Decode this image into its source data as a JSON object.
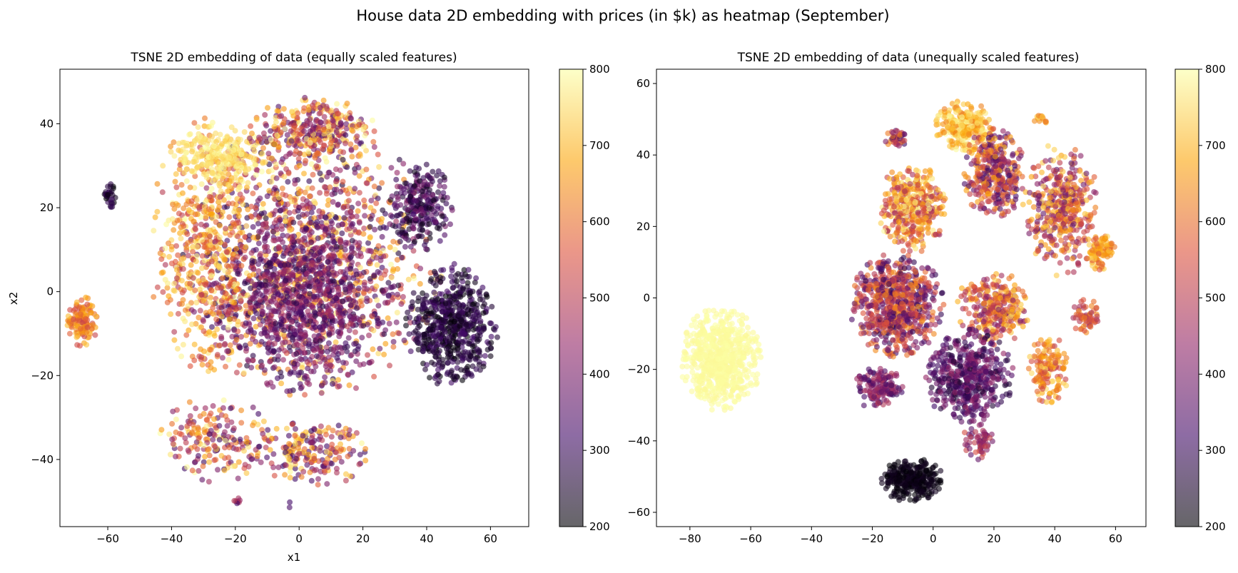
{
  "figure_title": "House data 2D embedding with prices (in $k) as heatmap (September)",
  "colormap": "inferno",
  "colormap_stops": [
    "#000004",
    "#420a68",
    "#932667",
    "#dd513a",
    "#fca50a",
    "#fcffa4"
  ],
  "chart_data": [
    {
      "type": "scatter",
      "title": "TSNE 2D embedding of data (equally scaled features)",
      "xlabel": "x1",
      "ylabel": "x2",
      "xlim": [
        -75,
        72
      ],
      "ylim": [
        -56,
        53
      ],
      "xticks": [
        -60,
        -40,
        -20,
        0,
        20,
        40,
        60
      ],
      "xtick_labels": [
        "−60",
        "−40",
        "−20",
        "0",
        "20",
        "40",
        "60"
      ],
      "yticks": [
        -40,
        -20,
        0,
        20,
        40
      ],
      "ytick_labels": [
        "−40",
        "−20",
        "0",
        "20",
        "40"
      ],
      "grid": false,
      "colorbar": {
        "label": "",
        "min": 200,
        "max": 800,
        "ticks": [
          200,
          300,
          400,
          500,
          600,
          700,
          800
        ],
        "tick_labels": [
          "200",
          "300",
          "400",
          "500",
          "600",
          "700",
          "800"
        ]
      },
      "clusters": [
        {
          "cx": 3,
          "cy": 8,
          "rx": 40,
          "ry": 32,
          "n": 1200,
          "cmin": 250,
          "cmax": 800
        },
        {
          "cx": 0,
          "cy": -2,
          "rx": 28,
          "ry": 22,
          "n": 900,
          "cmin": 270,
          "cmax": 480
        },
        {
          "cx": -30,
          "cy": 10,
          "rx": 16,
          "ry": 30,
          "n": 500,
          "cmin": 480,
          "cmax": 800
        },
        {
          "cx": -25,
          "cy": 32,
          "rx": 14,
          "ry": 8,
          "n": 250,
          "cmin": 720,
          "cmax": 800
        },
        {
          "cx": 5,
          "cy": 38,
          "rx": 20,
          "ry": 8,
          "n": 350,
          "cmin": 300,
          "cmax": 800
        },
        {
          "cx": 48,
          "cy": -8,
          "rx": 14,
          "ry": 14,
          "n": 600,
          "cmin": 200,
          "cmax": 330
        },
        {
          "cx": 38,
          "cy": 20,
          "rx": 10,
          "ry": 10,
          "n": 250,
          "cmin": 220,
          "cmax": 400
        },
        {
          "cx": -68,
          "cy": -7,
          "rx": 5,
          "ry": 6,
          "n": 120,
          "cmin": 520,
          "cmax": 720
        },
        {
          "cx": -59,
          "cy": 23,
          "rx": 2,
          "ry": 3,
          "n": 30,
          "cmin": 200,
          "cmax": 300
        },
        {
          "cx": -25,
          "cy": -35,
          "rx": 18,
          "ry": 10,
          "n": 200,
          "cmin": 300,
          "cmax": 800
        },
        {
          "cx": 5,
          "cy": -38,
          "rx": 18,
          "ry": 8,
          "n": 200,
          "cmin": 300,
          "cmax": 800
        },
        {
          "cx": -19,
          "cy": -50,
          "rx": 2,
          "ry": 1.5,
          "n": 8,
          "cmin": 300,
          "cmax": 500
        },
        {
          "cx": -3,
          "cy": -51,
          "rx": 1,
          "ry": 1,
          "n": 2,
          "cmin": 300,
          "cmax": 350
        }
      ]
    },
    {
      "type": "scatter",
      "title": "TSNE 2D embedding of data (unequally scaled features)",
      "xlabel": "",
      "ylabel": "",
      "xlim": [
        -91,
        70
      ],
      "ylim": [
        -64,
        64
      ],
      "xticks": [
        -80,
        -60,
        -40,
        -20,
        0,
        20,
        40,
        60
      ],
      "xtick_labels": [
        "−80",
        "−60",
        "−40",
        "−20",
        "0",
        "20",
        "40",
        "60"
      ],
      "yticks": [
        -60,
        -40,
        -20,
        0,
        20,
        40,
        60
      ],
      "ytick_labels": [
        "−60",
        "−40",
        "−20",
        "0",
        "20",
        "40",
        "60"
      ],
      "grid": false,
      "colorbar": {
        "label": "",
        "min": 200,
        "max": 800,
        "ticks": [
          200,
          300,
          400,
          500,
          600,
          700,
          800
        ],
        "tick_labels": [
          "200",
          "300",
          "400",
          "500",
          "600",
          "700",
          "800"
        ]
      },
      "clusters": [
        {
          "cx": -70,
          "cy": -17,
          "rx": 13,
          "ry": 14,
          "n": 700,
          "cmin": 790,
          "cmax": 800
        },
        {
          "cx": -7,
          "cy": -51,
          "rx": 10,
          "ry": 6,
          "n": 300,
          "cmin": 200,
          "cmax": 240
        },
        {
          "cx": 10,
          "cy": 48,
          "rx": 9,
          "ry": 7,
          "n": 250,
          "cmin": 620,
          "cmax": 800
        },
        {
          "cx": 20,
          "cy": 35,
          "rx": 10,
          "ry": 12,
          "n": 350,
          "cmin": 300,
          "cmax": 700
        },
        {
          "cx": -7,
          "cy": 25,
          "rx": 11,
          "ry": 12,
          "n": 400,
          "cmin": 450,
          "cmax": 800
        },
        {
          "cx": 42,
          "cy": 25,
          "rx": 12,
          "ry": 18,
          "n": 400,
          "cmin": 350,
          "cmax": 750
        },
        {
          "cx": 55,
          "cy": 13,
          "rx": 5,
          "ry": 5,
          "n": 100,
          "cmin": 550,
          "cmax": 750
        },
        {
          "cx": -12,
          "cy": -2,
          "rx": 15,
          "ry": 14,
          "n": 700,
          "cmin": 280,
          "cmax": 650
        },
        {
          "cx": 20,
          "cy": -3,
          "rx": 12,
          "ry": 10,
          "n": 300,
          "cmin": 400,
          "cmax": 750
        },
        {
          "cx": 12,
          "cy": -22,
          "rx": 14,
          "ry": 13,
          "n": 500,
          "cmin": 250,
          "cmax": 450
        },
        {
          "cx": 38,
          "cy": -20,
          "rx": 7,
          "ry": 9,
          "n": 150,
          "cmin": 500,
          "cmax": 760
        },
        {
          "cx": 50,
          "cy": -5,
          "rx": 5,
          "ry": 5,
          "n": 60,
          "cmin": 450,
          "cmax": 650
        },
        {
          "cx": -18,
          "cy": -25,
          "rx": 8,
          "ry": 6,
          "n": 150,
          "cmin": 300,
          "cmax": 500
        },
        {
          "cx": 15,
          "cy": -40,
          "rx": 5,
          "ry": 5,
          "n": 60,
          "cmin": 350,
          "cmax": 550
        },
        {
          "cx": -12,
          "cy": 45,
          "rx": 4,
          "ry": 3,
          "n": 40,
          "cmin": 300,
          "cmax": 650
        },
        {
          "cx": 35,
          "cy": 50,
          "rx": 3,
          "ry": 1.5,
          "n": 15,
          "cmin": 600,
          "cmax": 750
        }
      ]
    }
  ]
}
